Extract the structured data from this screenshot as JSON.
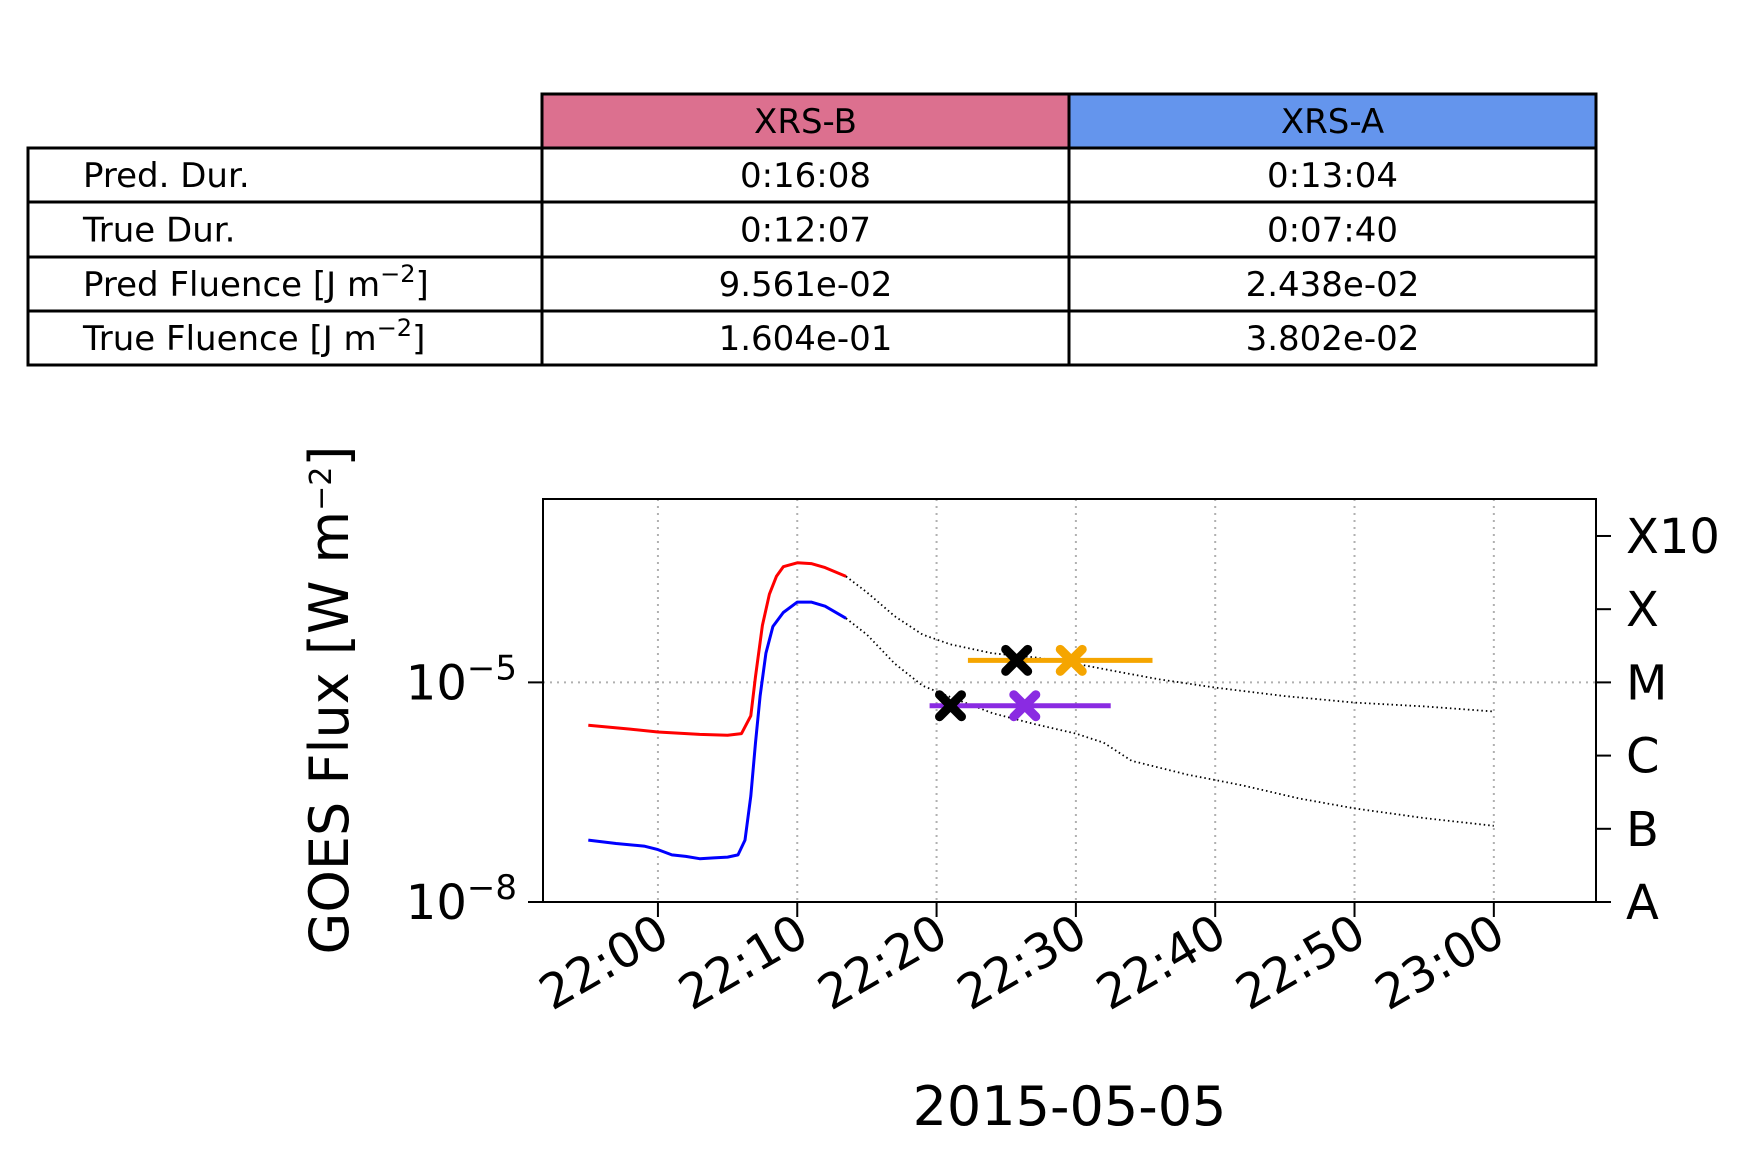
{
  "table": {
    "columns": [
      {
        "label": "XRS-B",
        "color": "#DC708F"
      },
      {
        "label": "XRS-A",
        "color": "#6495ED"
      }
    ],
    "rows": [
      {
        "label": "Pred. Dur.",
        "values": [
          "0:16:08",
          "0:13:04"
        ]
      },
      {
        "label": "True Dur.",
        "values": [
          "0:12:07",
          "0:07:40"
        ]
      },
      {
        "label": "Pred Fluence [J m",
        "sup": "−2",
        "suffix": "]",
        "values": [
          "9.561e-02",
          "2.438e-02"
        ]
      },
      {
        "label": "True Fluence [J m",
        "sup": "−2",
        "suffix": "]",
        "values": [
          "1.604e-01",
          "3.802e-02"
        ]
      }
    ]
  },
  "chart_data": {
    "type": "line",
    "xlabel": "2015-05-05",
    "ylabel": "GOES Flux [W m",
    "ylabel_sup": "−2",
    "ylabel_suffix": "]",
    "yscale": "log",
    "xlim": [
      "21:51:45",
      "23:07:20"
    ],
    "ylim": [
      1e-08,
      0.0032
    ],
    "x_ticks": [
      "22:00",
      "22:10",
      "22:20",
      "22:30",
      "22:40",
      "22:50",
      "23:00"
    ],
    "y_ticks": [
      {
        "value": 1e-05,
        "base": "10",
        "exp": "−5"
      },
      {
        "value": 1e-08,
        "base": "10",
        "exp": "−8"
      }
    ],
    "secondary_y_ticks": [
      {
        "value": 1e-08,
        "label": "A"
      },
      {
        "value": 1e-07,
        "label": "B"
      },
      {
        "value": 1e-06,
        "label": "C"
      },
      {
        "value": 1e-05,
        "label": "M"
      },
      {
        "value": 0.0001,
        "label": "X"
      },
      {
        "value": 0.001,
        "label": "X10"
      }
    ],
    "grid": true,
    "series": [
      {
        "color": "#FF0000",
        "style": "solid",
        "points": [
          [
            "21:55:00",
            2.6e-06
          ],
          [
            "21:58:00",
            2.3e-06
          ],
          [
            "22:00:00",
            2.1e-06
          ],
          [
            "22:03:00",
            1.95e-06
          ],
          [
            "22:05:00",
            1.9e-06
          ],
          [
            "22:06:00",
            2e-06
          ],
          [
            "22:06:40",
            3.5e-06
          ],
          [
            "22:07:00",
            1.2e-05
          ],
          [
            "22:07:30",
            6e-05
          ],
          [
            "22:08:00",
            0.00016
          ],
          [
            "22:08:30",
            0.00028
          ],
          [
            "22:09:00",
            0.00038
          ],
          [
            "22:10:00",
            0.00043
          ],
          [
            "22:11:00",
            0.00042
          ],
          [
            "22:12:00",
            0.00037
          ],
          [
            "22:13:30",
            0.00028
          ]
        ]
      },
      {
        "color": "#000000",
        "style": "dotted",
        "points": [
          [
            "22:13:30",
            0.00028
          ],
          [
            "22:15:00",
            0.00017
          ],
          [
            "22:17:00",
            8e-05
          ],
          [
            "22:19:00",
            4.5e-05
          ],
          [
            "22:21:00",
            3.3e-05
          ],
          [
            "22:24:00",
            2.5e-05
          ],
          [
            "22:27:00",
            2.2e-05
          ],
          [
            "22:30:00",
            1.8e-05
          ],
          [
            "22:33:00",
            1.4e-05
          ],
          [
            "22:36:00",
            1.1e-05
          ],
          [
            "22:40:00",
            8.5e-06
          ],
          [
            "22:45:00",
            6.5e-06
          ],
          [
            "22:50:00",
            5.3e-06
          ],
          [
            "22:55:00",
            4.7e-06
          ],
          [
            "23:00:00",
            4e-06
          ]
        ]
      },
      {
        "color": "#0000FF",
        "style": "solid",
        "points": [
          [
            "21:55:00",
            7e-08
          ],
          [
            "21:57:00",
            6.3e-08
          ],
          [
            "21:59:00",
            5.8e-08
          ],
          [
            "22:00:00",
            5.2e-08
          ],
          [
            "22:01:00",
            4.4e-08
          ],
          [
            "22:02:00",
            4.2e-08
          ],
          [
            "22:03:00",
            3.9e-08
          ],
          [
            "22:04:00",
            4e-08
          ],
          [
            "22:05:00",
            4.1e-08
          ],
          [
            "22:05:45",
            4.4e-08
          ],
          [
            "22:06:15",
            7e-08
          ],
          [
            "22:06:40",
            2.8e-07
          ],
          [
            "22:07:00",
            1.5e-06
          ],
          [
            "22:07:20",
            6.5e-06
          ],
          [
            "22:07:45",
            2.5e-05
          ],
          [
            "22:08:15",
            5.8e-05
          ],
          [
            "22:09:00",
            9e-05
          ],
          [
            "22:10:00",
            0.000125
          ],
          [
            "22:11:00",
            0.000125
          ],
          [
            "22:12:00",
            0.00011
          ],
          [
            "22:13:30",
            7.5e-05
          ]
        ]
      },
      {
        "color": "#000000",
        "style": "dotted",
        "points": [
          [
            "22:13:30",
            7.5e-05
          ],
          [
            "22:15:00",
            4.5e-05
          ],
          [
            "22:17:00",
            1.8e-05
          ],
          [
            "22:19:00",
            9e-06
          ],
          [
            "22:21:00",
            6.3e-06
          ],
          [
            "22:24:00",
            3.8e-06
          ],
          [
            "22:27:00",
            2.7e-06
          ],
          [
            "22:30:00",
            2e-06
          ],
          [
            "22:32:00",
            1.5e-06
          ],
          [
            "22:34:00",
            8.5e-07
          ],
          [
            "22:38:00",
            5.5e-07
          ],
          [
            "22:42:00",
            3.9e-07
          ],
          [
            "22:46:00",
            2.6e-07
          ],
          [
            "22:50:00",
            1.9e-07
          ],
          [
            "22:55:00",
            1.4e-07
          ],
          [
            "23:00:00",
            1.1e-07
          ]
        ]
      }
    ],
    "error_bars": [
      {
        "color": "#F5A500",
        "y": 2e-05,
        "x_start": "22:22:15",
        "x_end": "22:35:30",
        "center": "22:29:40"
      },
      {
        "color": "#8A2BE2",
        "y": 4.8e-06,
        "x_start": "22:19:30",
        "x_end": "22:32:30",
        "center": "22:26:20"
      }
    ],
    "markers": [
      {
        "color": "#000000",
        "x": "22:25:45",
        "y": 2e-05
      },
      {
        "color": "#F5A500",
        "x": "22:29:40",
        "y": 2e-05
      },
      {
        "color": "#000000",
        "x": "22:21:00",
        "y": 4.8e-06
      },
      {
        "color": "#8A2BE2",
        "x": "22:26:20",
        "y": 4.8e-06
      }
    ]
  }
}
